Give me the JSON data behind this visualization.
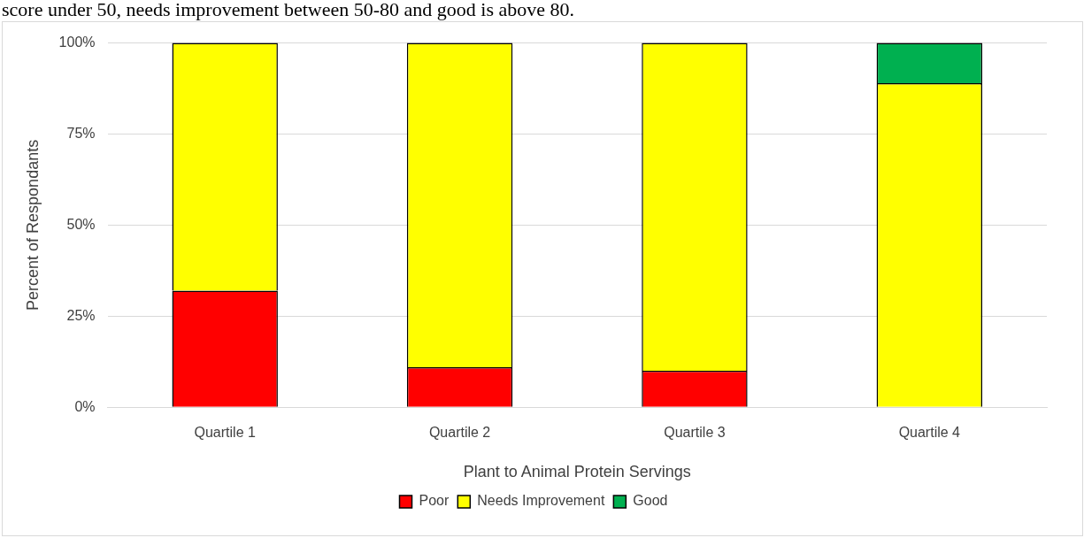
{
  "chart_data": {
    "type": "bar",
    "stacked": true,
    "annotations": [
      "score under 50, needs improvement between 50-80 and good is above 80."
    ],
    "xlabel": "Plant to Animal Protein Servings",
    "ylabel": "Percent of Respondants",
    "categories": [
      "Quartile 1",
      "Quartile 2",
      "Quartile 3",
      "Quartile 4"
    ],
    "series": [
      {
        "name": "Poor",
        "color": "#ff0000",
        "values": [
          32,
          11,
          10,
          0
        ]
      },
      {
        "name": "Needs Improvement",
        "color": "#ffff00",
        "values": [
          68,
          89,
          90,
          89
        ]
      },
      {
        "name": "Good",
        "color": "#00b050",
        "values": [
          0,
          0,
          0,
          11
        ]
      }
    ],
    "ylim": [
      0,
      100
    ],
    "yticks": [
      {
        "value": 0,
        "label": "0%"
      },
      {
        "value": 25,
        "label": "25%"
      },
      {
        "value": 50,
        "label": "50%"
      },
      {
        "value": 75,
        "label": "75%"
      },
      {
        "value": 100,
        "label": "100%"
      }
    ],
    "grid": "y",
    "legend": "bottom"
  }
}
